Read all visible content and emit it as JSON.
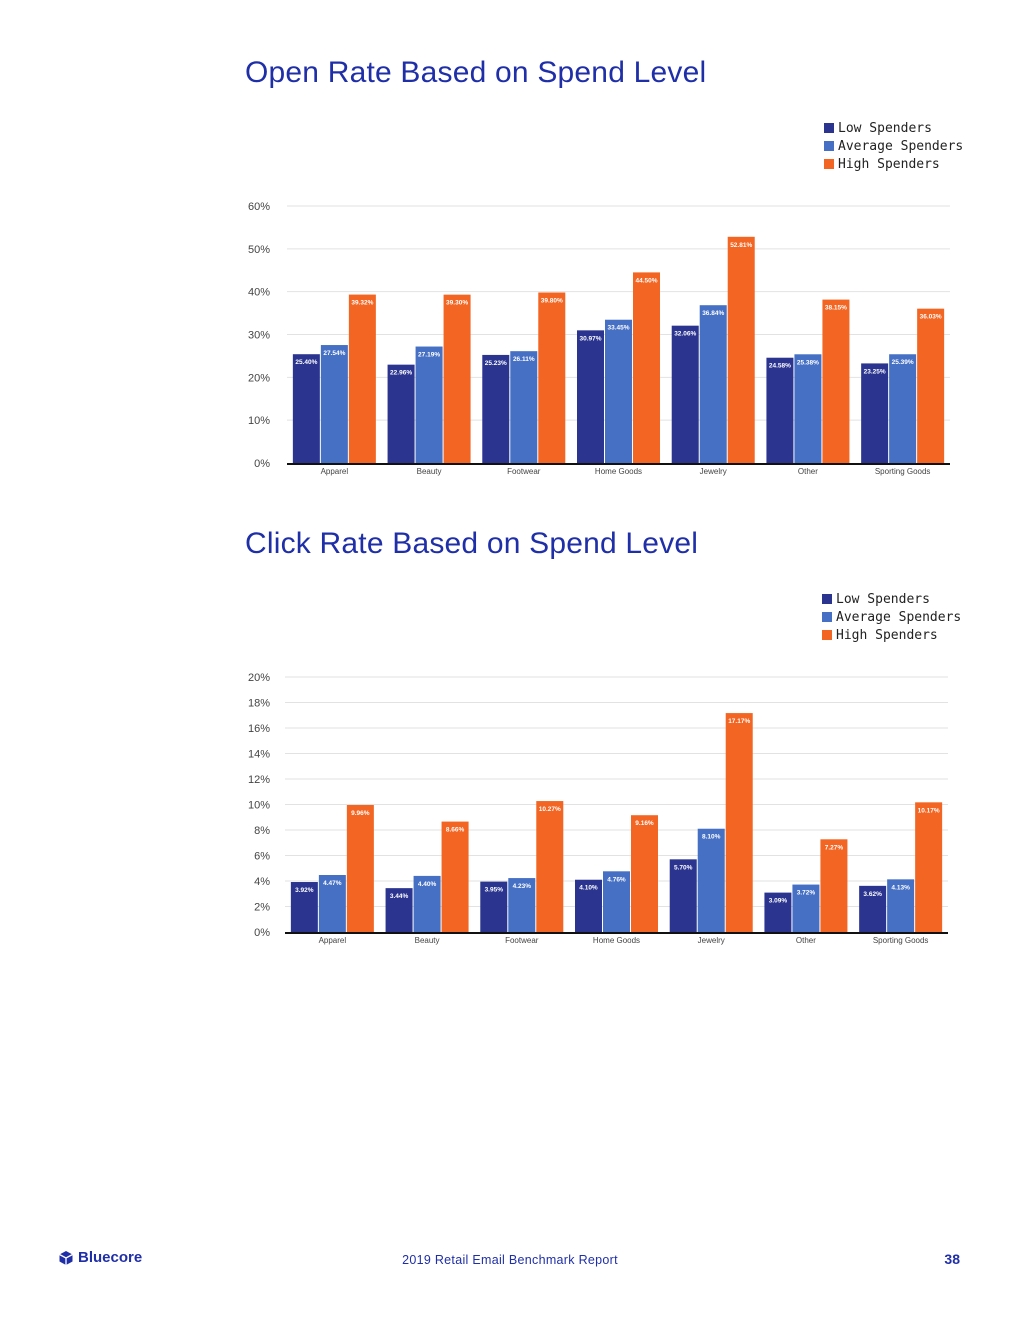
{
  "colors": {
    "low": "#2b3590",
    "average": "#4670c4",
    "high": "#f26522",
    "title": "#1f2fa8",
    "grid": "#e2e2e2",
    "axis_text": "#444444"
  },
  "chart_data": [
    {
      "type": "bar",
      "title": "Open Rate Based on Spend Level",
      "categories": [
        "Apparel",
        "Beauty",
        "Footwear",
        "Home Goods",
        "Jewelry",
        "Other",
        "Sporting Goods"
      ],
      "series": [
        {
          "name": "Low Spenders",
          "values": [
            25.4,
            22.96,
            25.23,
            30.97,
            32.06,
            24.58,
            23.25
          ],
          "labels": [
            "25.40%",
            "22.96%",
            "25.23%",
            "30.97%",
            "32.06%",
            "24.58%",
            "23.25%"
          ]
        },
        {
          "name": "Average Spenders",
          "values": [
            27.54,
            27.19,
            26.11,
            33.45,
            36.84,
            25.38,
            25.39
          ],
          "labels": [
            "27.54%",
            "27.19%",
            "26.11%",
            "33.45%",
            "36.84%",
            "25.38%",
            "25.39%"
          ]
        },
        {
          "name": "High Spenders",
          "values": [
            39.32,
            39.3,
            39.8,
            44.5,
            52.81,
            38.15,
            36.03
          ],
          "labels": [
            "39.32%",
            "39.30%",
            "39.80%",
            "44.50%",
            "52.81%",
            "38.15%",
            "36.03%"
          ]
        }
      ],
      "ylim": [
        0,
        60
      ],
      "yticks": [
        "0%",
        "10%",
        "20%",
        "30%",
        "40%",
        "50%",
        "60%"
      ],
      "xlabel": "",
      "ylabel": "",
      "grid": true,
      "legend": "top-right"
    },
    {
      "type": "bar",
      "title": "Click Rate Based on Spend Level",
      "categories": [
        "Apparel",
        "Beauty",
        "Footwear",
        "Home Goods",
        "Jewelry",
        "Other",
        "Sporting Goods"
      ],
      "series": [
        {
          "name": "Low Spenders",
          "values": [
            3.92,
            3.44,
            3.95,
            4.1,
            5.7,
            3.09,
            3.62
          ],
          "labels": [
            "3.92%",
            "3.44%",
            "3.95%",
            "4.10%",
            "5.70%",
            "3.09%",
            "3.62%"
          ]
        },
        {
          "name": "Average Spenders",
          "values": [
            4.47,
            4.4,
            4.23,
            4.76,
            8.1,
            3.72,
            4.13
          ],
          "labels": [
            "4.47%",
            "4.40%",
            "4.23%",
            "4.76%",
            "8.10%",
            "3.72%",
            "4.13%"
          ]
        },
        {
          "name": "High Spenders",
          "values": [
            9.96,
            8.66,
            10.27,
            9.16,
            17.17,
            7.27,
            10.17
          ],
          "labels": [
            "9.96%",
            "8.66%",
            "10.27%",
            "9.16%",
            "17.17%",
            "7.27%",
            "10.17%"
          ]
        }
      ],
      "ylim": [
        0,
        20
      ],
      "yticks": [
        "0%",
        "2%",
        "4%",
        "6%",
        "8%",
        "10%",
        "12%",
        "14%",
        "16%",
        "18%",
        "20%"
      ],
      "xlabel": "",
      "ylabel": "",
      "grid": true,
      "legend": "top-right"
    }
  ],
  "footer": {
    "logo_text": "Bluecore",
    "report_title": "2019 Retail Email Benchmark Report",
    "page_number": "38"
  }
}
